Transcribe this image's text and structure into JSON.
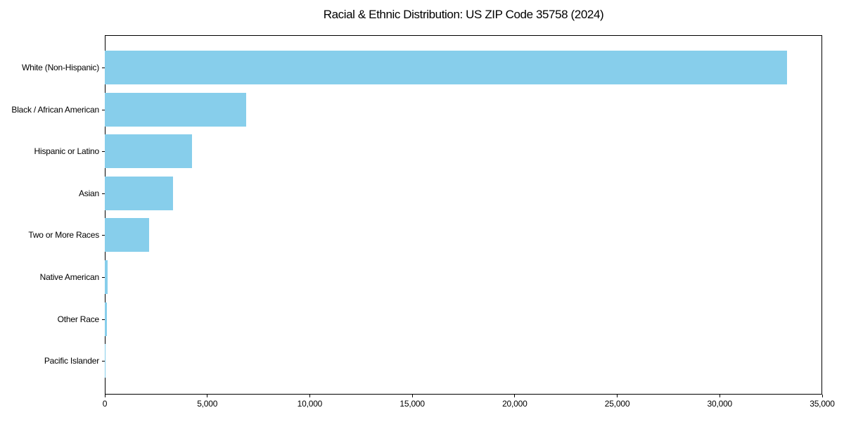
{
  "chart_data": {
    "type": "bar",
    "orientation": "horizontal",
    "title": "Racial & Ethnic Distribution: US ZIP Code 35758 (2024)",
    "categories": [
      "White (Non-Hispanic)",
      "Black / African American",
      "Hispanic or Latino",
      "Asian",
      "Two or More Races",
      "Native American",
      "Other Race",
      "Pacific Islander"
    ],
    "values": [
      33300,
      6880,
      4270,
      3340,
      2170,
      140,
      100,
      10
    ],
    "xlabel": "",
    "ylabel": "",
    "xlim": [
      0,
      35000
    ],
    "xticks": [
      0,
      5000,
      10000,
      15000,
      20000,
      25000,
      30000,
      35000
    ],
    "xtick_labels": [
      "0",
      "5,000",
      "10,000",
      "15,000",
      "20,000",
      "25,000",
      "30,000",
      "35,000"
    ],
    "grid": false,
    "legend": "none",
    "bar_color": "#87CEEB",
    "axis_color": "#000000",
    "text_color": "#000000",
    "background_color": "#ffffff"
  }
}
